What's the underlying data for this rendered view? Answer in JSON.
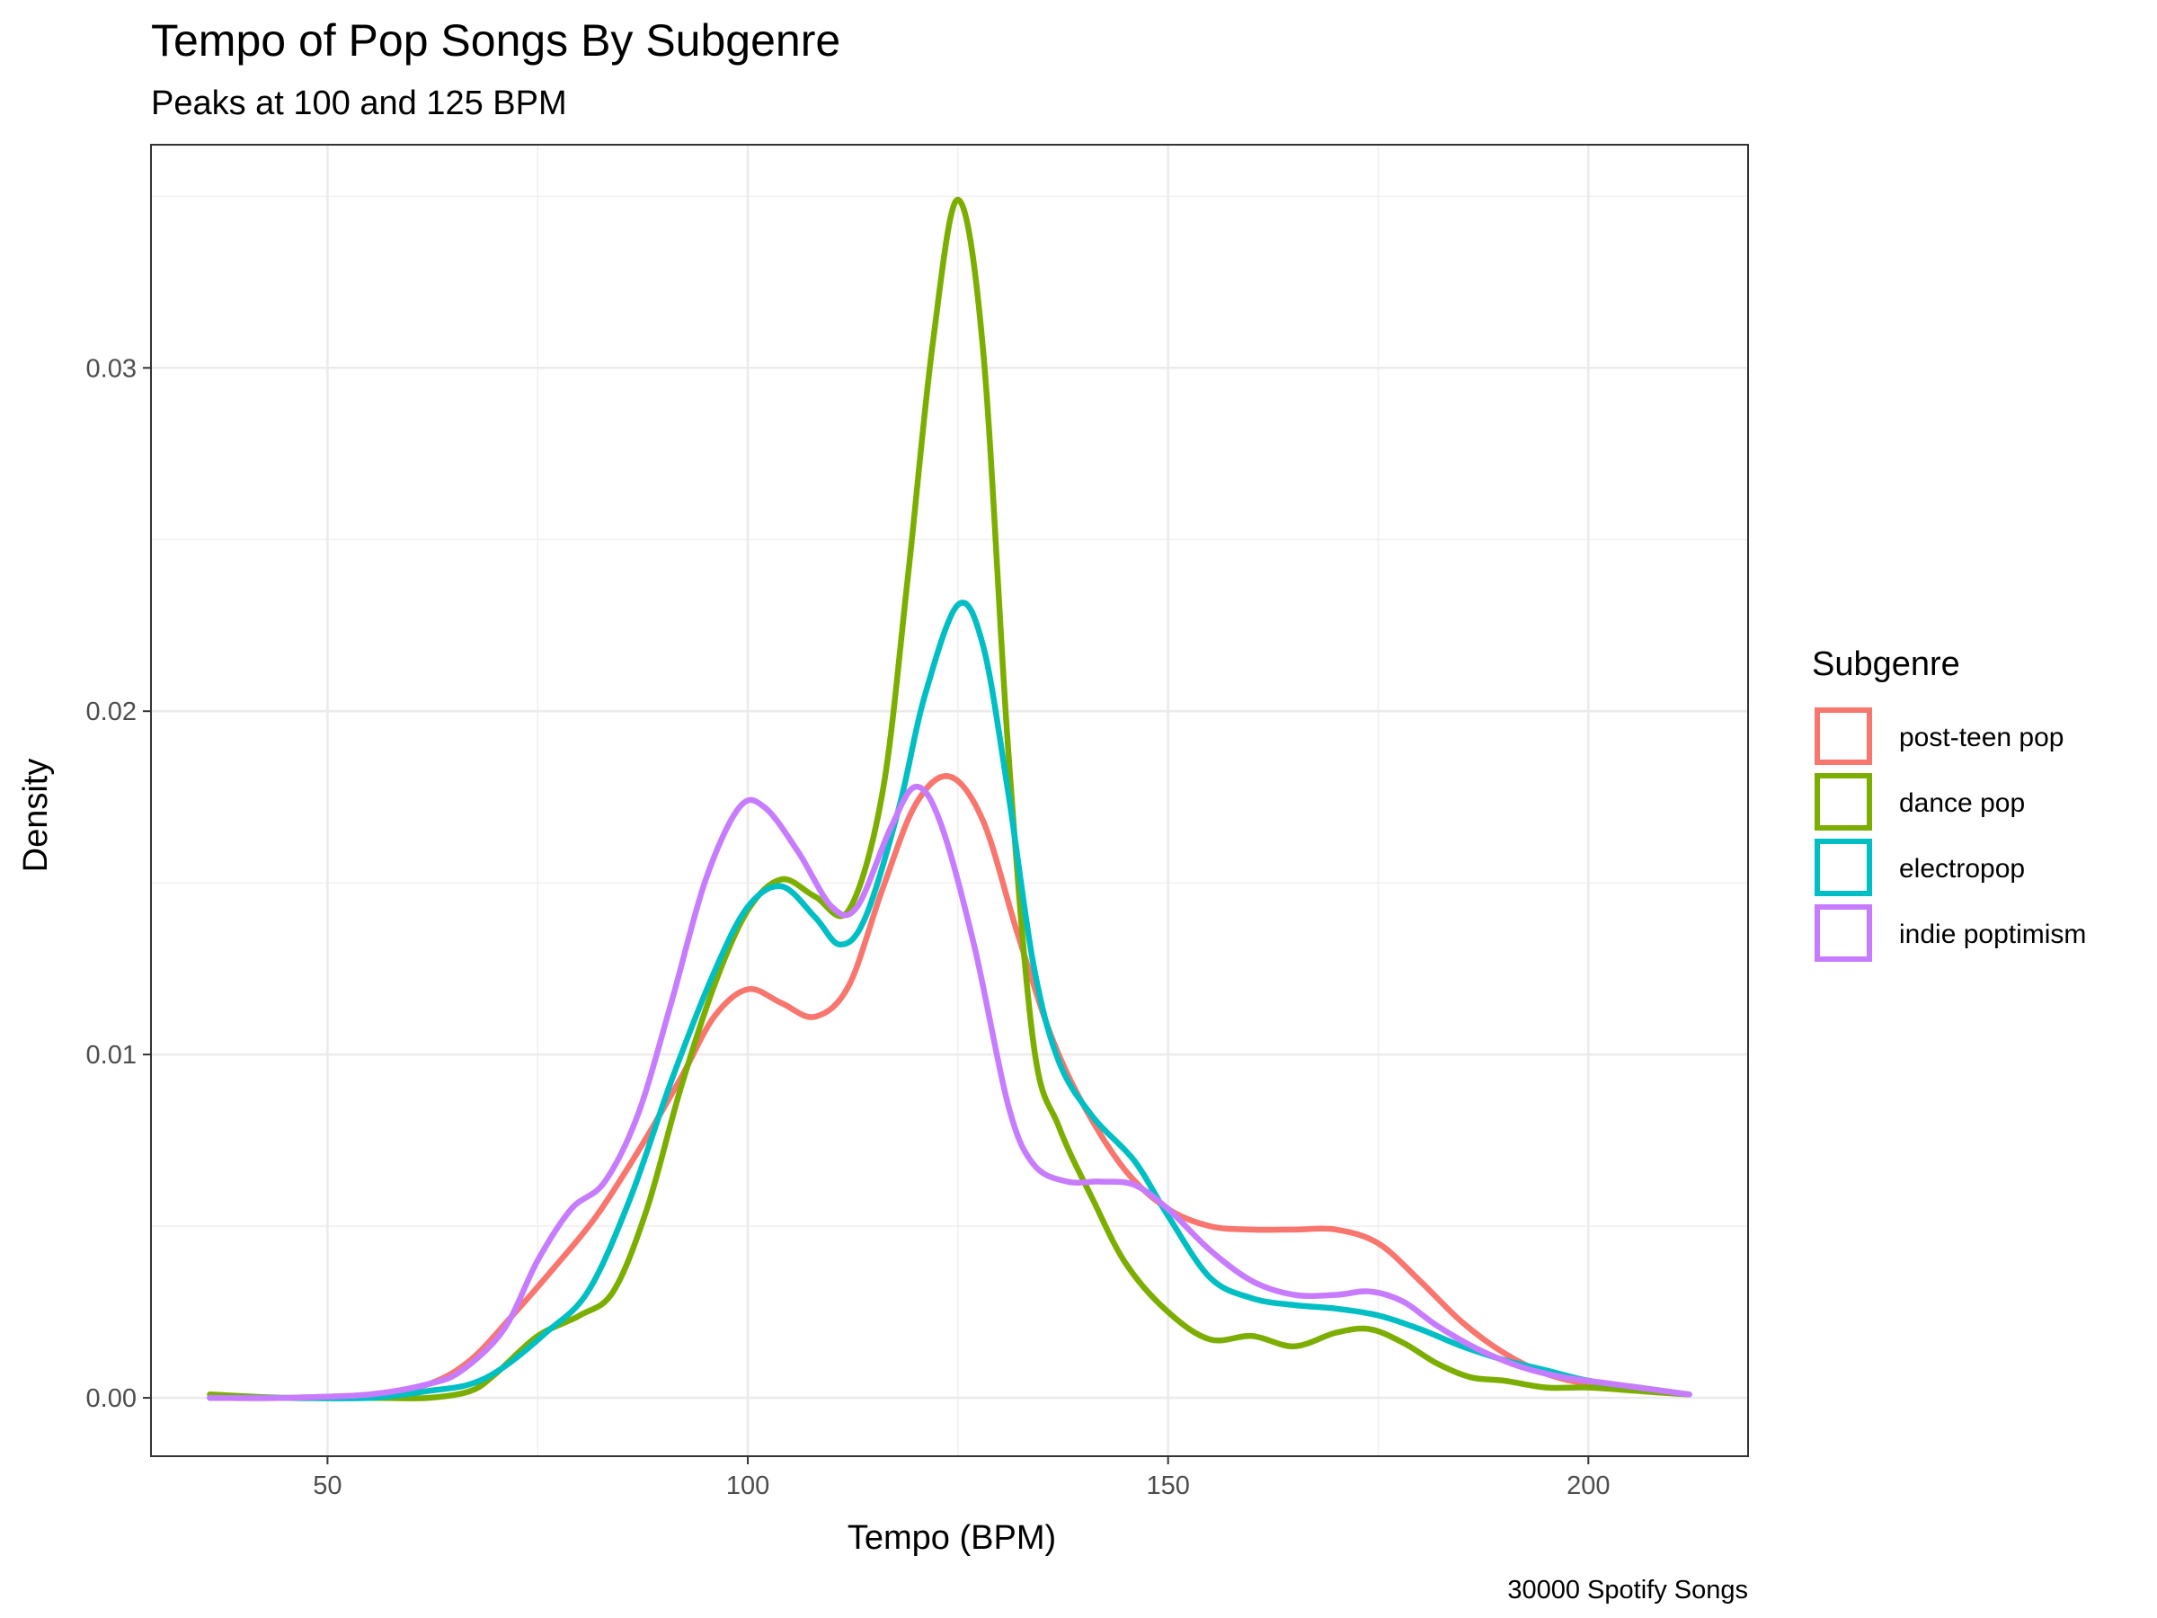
{
  "chart_data": {
    "type": "line",
    "title": "Tempo of Pop Songs By Subgenre",
    "subtitle": "Peaks at 100 and 125 BPM",
    "xlabel": "Tempo (BPM)",
    "ylabel": "Density",
    "caption": "30000 Spotify Songs",
    "xlim": [
      29,
      219
    ],
    "ylim": [
      -0.0017,
      0.0365
    ],
    "x_ticks": [
      50,
      100,
      150,
      200
    ],
    "y_ticks": [
      0.0,
      0.01,
      0.02,
      0.03
    ],
    "x_tick_labels": [
      "50",
      "100",
      "150",
      "200"
    ],
    "y_tick_labels": [
      "0.00",
      "0.01",
      "0.02",
      "0.03"
    ],
    "grid": true,
    "legend": {
      "title": "Subgenre",
      "position": "right"
    },
    "series": [
      {
        "name": "post-teen pop",
        "color": "#F8766D",
        "points": [
          [
            36,
            0.0
          ],
          [
            45,
            0.0
          ],
          [
            55,
            0.0001
          ],
          [
            62,
            0.0004
          ],
          [
            67,
            0.0011
          ],
          [
            72,
            0.0024
          ],
          [
            77,
            0.0038
          ],
          [
            82,
            0.0053
          ],
          [
            87,
            0.0072
          ],
          [
            92,
            0.0093
          ],
          [
            96,
            0.0111
          ],
          [
            100,
            0.0119
          ],
          [
            104,
            0.0115
          ],
          [
            108,
            0.0111
          ],
          [
            112,
            0.012
          ],
          [
            116,
            0.0148
          ],
          [
            120,
            0.0173
          ],
          [
            124,
            0.0181
          ],
          [
            128,
            0.0168
          ],
          [
            132,
            0.0136
          ],
          [
            136,
            0.0106
          ],
          [
            140,
            0.0085
          ],
          [
            145,
            0.0066
          ],
          [
            150,
            0.0055
          ],
          [
            155,
            0.005
          ],
          [
            160,
            0.0049
          ],
          [
            165,
            0.0049
          ],
          [
            170,
            0.0049
          ],
          [
            175,
            0.0045
          ],
          [
            180,
            0.0034
          ],
          [
            185,
            0.0022
          ],
          [
            190,
            0.0013
          ],
          [
            195,
            0.0007
          ],
          [
            200,
            0.0004
          ],
          [
            206,
            0.0002
          ],
          [
            212,
            0.0001
          ]
        ]
      },
      {
        "name": "dance pop",
        "color": "#7CAE00",
        "points": [
          [
            36,
            0.0001
          ],
          [
            45,
            0.0
          ],
          [
            55,
            0.0
          ],
          [
            62,
            0.0
          ],
          [
            67,
            0.0002
          ],
          [
            70,
            0.0007
          ],
          [
            75,
            0.0018
          ],
          [
            80,
            0.0024
          ],
          [
            84,
            0.0031
          ],
          [
            88,
            0.0055
          ],
          [
            92,
            0.009
          ],
          [
            96,
            0.012
          ],
          [
            100,
            0.0142
          ],
          [
            104,
            0.0151
          ],
          [
            108,
            0.0146
          ],
          [
            112,
            0.0142
          ],
          [
            116,
            0.0176
          ],
          [
            119,
            0.0238
          ],
          [
            122,
            0.0307
          ],
          [
            125,
            0.0349
          ],
          [
            128,
            0.0305
          ],
          [
            131,
            0.0188
          ],
          [
            134,
            0.0103
          ],
          [
            137,
            0.0079
          ],
          [
            141,
            0.0058
          ],
          [
            145,
            0.0039
          ],
          [
            150,
            0.0025
          ],
          [
            155,
            0.0017
          ],
          [
            160,
            0.0018
          ],
          [
            165,
            0.0015
          ],
          [
            170,
            0.0019
          ],
          [
            174,
            0.002
          ],
          [
            178,
            0.0016
          ],
          [
            182,
            0.001
          ],
          [
            186,
            0.0006
          ],
          [
            190,
            0.0005
          ],
          [
            195,
            0.0003
          ],
          [
            200,
            0.0003
          ],
          [
            206,
            0.0002
          ],
          [
            212,
            0.0001
          ]
        ]
      },
      {
        "name": "electropop",
        "color": "#00BFC4",
        "points": [
          [
            36,
            0.0
          ],
          [
            45,
            0.0
          ],
          [
            55,
            0.0
          ],
          [
            62,
            0.0002
          ],
          [
            67,
            0.0004
          ],
          [
            71,
            0.0009
          ],
          [
            76,
            0.0019
          ],
          [
            81,
            0.0031
          ],
          [
            86,
            0.0058
          ],
          [
            91,
            0.0093
          ],
          [
            96,
            0.0124
          ],
          [
            100,
            0.0143
          ],
          [
            104,
            0.0149
          ],
          [
            108,
            0.014
          ],
          [
            111,
            0.0132
          ],
          [
            114,
            0.014
          ],
          [
            118,
            0.0172
          ],
          [
            121,
            0.0204
          ],
          [
            125,
            0.0231
          ],
          [
            128,
            0.0219
          ],
          [
            131,
            0.0176
          ],
          [
            134,
            0.0126
          ],
          [
            137,
            0.0098
          ],
          [
            141,
            0.0082
          ],
          [
            146,
            0.0069
          ],
          [
            150,
            0.0053
          ],
          [
            155,
            0.0035
          ],
          [
            160,
            0.0029
          ],
          [
            165,
            0.0027
          ],
          [
            170,
            0.0026
          ],
          [
            175,
            0.0024
          ],
          [
            180,
            0.002
          ],
          [
            185,
            0.0015
          ],
          [
            190,
            0.0011
          ],
          [
            195,
            0.0008
          ],
          [
            200,
            0.0005
          ],
          [
            206,
            0.0003
          ],
          [
            212,
            0.0001
          ]
        ]
      },
      {
        "name": "indie poptimism",
        "color": "#C77CFF",
        "points": [
          [
            36,
            0.0
          ],
          [
            45,
            0.0
          ],
          [
            55,
            0.0001
          ],
          [
            62,
            0.0004
          ],
          [
            66,
            0.0008
          ],
          [
            71,
            0.002
          ],
          [
            75,
            0.004
          ],
          [
            79,
            0.0055
          ],
          [
            83,
            0.0063
          ],
          [
            87,
            0.0083
          ],
          [
            91,
            0.0116
          ],
          [
            95,
            0.0151
          ],
          [
            99,
            0.0172
          ],
          [
            102,
            0.0172
          ],
          [
            106,
            0.0159
          ],
          [
            110,
            0.0143
          ],
          [
            113,
            0.0143
          ],
          [
            117,
            0.0166
          ],
          [
            120,
            0.0178
          ],
          [
            123,
            0.0167
          ],
          [
            127,
            0.0131
          ],
          [
            131,
            0.0085
          ],
          [
            134,
            0.0068
          ],
          [
            138,
            0.0063
          ],
          [
            142,
            0.0063
          ],
          [
            146,
            0.0062
          ],
          [
            150,
            0.0055
          ],
          [
            155,
            0.0043
          ],
          [
            160,
            0.0034
          ],
          [
            165,
            0.003
          ],
          [
            170,
            0.003
          ],
          [
            174,
            0.0031
          ],
          [
            178,
            0.0028
          ],
          [
            182,
            0.0021
          ],
          [
            187,
            0.0014
          ],
          [
            192,
            0.0009
          ],
          [
            197,
            0.0006
          ],
          [
            203,
            0.0004
          ],
          [
            212,
            0.0001
          ]
        ]
      }
    ]
  }
}
